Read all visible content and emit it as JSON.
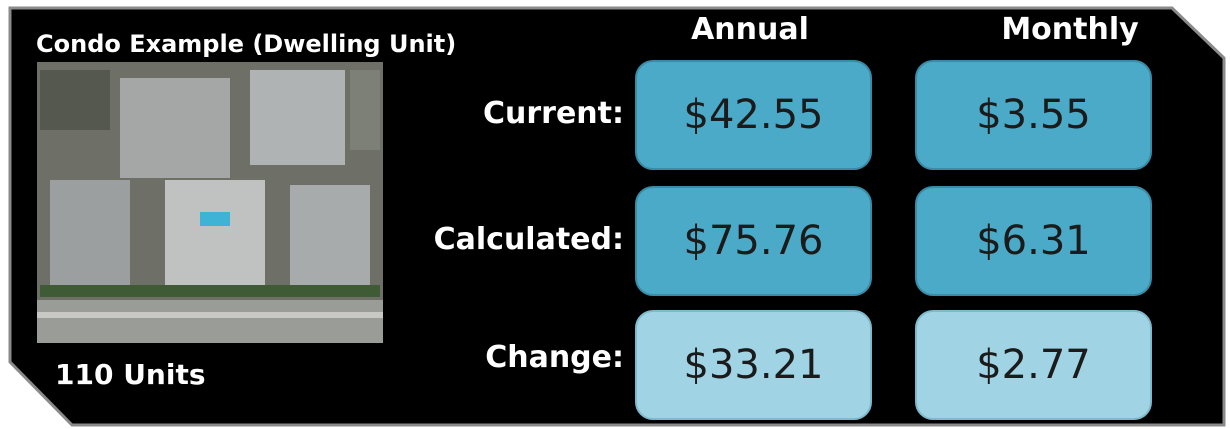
{
  "header": {
    "title": "Condo Example (Dwelling Unit)"
  },
  "image": {
    "caption": "110 Units"
  },
  "table": {
    "columns": [
      "Annual",
      "Monthly"
    ],
    "rows": [
      {
        "label": "Current:",
        "values": [
          "$42.55",
          "$3.55"
        ]
      },
      {
        "label": "Calculated:",
        "values": [
          "$75.76",
          "$6.31"
        ]
      },
      {
        "label": "Change:",
        "values": [
          "$33.21",
          "$2.77"
        ]
      }
    ]
  }
}
